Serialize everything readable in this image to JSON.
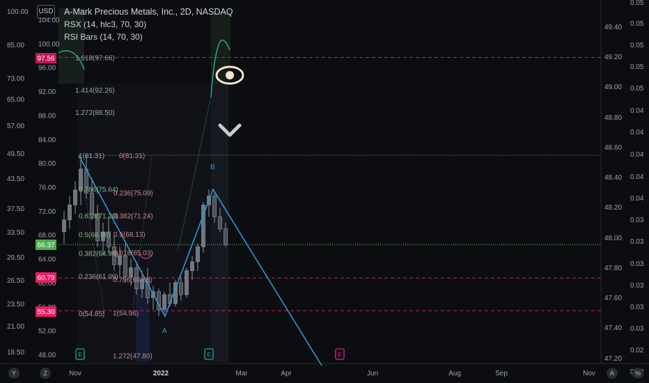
{
  "header": {
    "title": "A-Mark Precious Metals, Inc., 2D, NASDAQ",
    "indicator_1": "RSX (14, hlc3, 70, 30)",
    "indicator_2": "RSI Bars (14, 70, 30)",
    "currency": "USD"
  },
  "bottom_buttons": {
    "y": "Y",
    "z": "Z",
    "a": "A",
    "log": "%"
  },
  "colors": {
    "background": "#0c0d10",
    "zigzag": "#2b9bd4",
    "fib_dashed": "#d81b60",
    "current_price": "#7fd07f",
    "rsx_line": "#26a69a",
    "earnings": "#26a69a",
    "event": "#e91e8c"
  },
  "icons": [
    "eye-icon",
    "chevron-down-icon",
    "earnings-icon",
    "event-icon"
  ],
  "chart_data": {
    "type": "candlestick",
    "x_axis": {
      "ticks": [
        "Nov",
        "2022",
        "Mar",
        "Apr",
        "Jun",
        "Aug",
        "Sep",
        "Nov"
      ]
    },
    "left_price_axis": {
      "ticks": [
        "100.00",
        "85.00",
        "73.00",
        "65.00",
        "57.00",
        "49.50",
        "43.50",
        "37.50",
        "33.50",
        "29.50",
        "26.50",
        "23.50",
        "21.00",
        "18.50"
      ],
      "badges": [
        {
          "label": "97.56",
          "color": "#c2185b"
        },
        {
          "label": "66.37",
          "color": "#4caf50"
        },
        {
          "label": "60.79",
          "color": "#e91e63"
        },
        {
          "label": "55.30",
          "color": "#e91e63"
        }
      ]
    },
    "inner_price_axis": {
      "ticks": [
        "104.00",
        "100.00",
        "96.00",
        "92.00",
        "88.00",
        "84.00",
        "80.00",
        "76.00",
        "72.00",
        "68.00",
        "64.00",
        "60.00",
        "56.00",
        "52.00",
        "48.00"
      ]
    },
    "right_axis_1": {
      "ticks": [
        "49.40",
        "49.20",
        "49.00",
        "48.80",
        "48.60",
        "48.40",
        "48.20",
        "48.00",
        "47.80",
        "47.60",
        "47.40",
        "47.20"
      ]
    },
    "right_axis_2": {
      "ticks": [
        "0.05",
        "0.05",
        "0.05",
        "0.05",
        "0.05",
        "0.04",
        "0.04",
        "0.04",
        "0.04",
        "0.04",
        "0.03",
        "0.03",
        "0.03",
        "0.03",
        "0.03",
        "0.03",
        "0.02",
        "0.02"
      ]
    },
    "fib_labels_left": [
      {
        "text": "1.618(97.66)",
        "price": 97.66
      },
      {
        "text": "1.414(92.26)",
        "price": 92.26
      },
      {
        "text": "1.272(88.50)",
        "price": 88.5
      },
      {
        "text": "1(81.31)",
        "price": 81.31
      },
      {
        "text": "0.786(75.64)",
        "price": 75.64
      },
      {
        "text": "0.618(71.20)",
        "price": 71.2
      },
      {
        "text": "0.5(68.08)",
        "price": 68.08
      },
      {
        "text": "0.382(64.96)",
        "price": 64.96
      },
      {
        "text": "0.236(61.09)",
        "price": 61.09
      },
      {
        "text": "0(54.85)",
        "price": 54.85
      }
    ],
    "fib_labels_right": [
      {
        "text": "0(81.31)",
        "price": 81.31
      },
      {
        "text": "0.236(75.09)",
        "price": 75.09
      },
      {
        "text": "0.382(71.24)",
        "price": 71.24
      },
      {
        "text": "0.5(68.13)",
        "price": 68.13
      },
      {
        "text": "0.618(65.03)",
        "price": 65.03
      },
      {
        "text": "0.786(60.60)",
        "price": 60.6
      },
      {
        "text": "1(54.96)",
        "price": 54.96
      },
      {
        "text": "1.272(47.80)",
        "price": 47.8
      }
    ],
    "pattern_points": [
      {
        "label": "",
        "price": 81.31
      },
      {
        "label": "A",
        "price": 54.4
      },
      {
        "label": "B",
        "price": 75.6
      }
    ],
    "candles": [
      {
        "o": 68.5,
        "h": 72.0,
        "l": 66.5,
        "c": 70.5
      },
      {
        "o": 70.5,
        "h": 74.5,
        "l": 69.0,
        "c": 73.0
      },
      {
        "o": 73.0,
        "h": 77.0,
        "l": 71.5,
        "c": 75.5
      },
      {
        "o": 75.5,
        "h": 80.5,
        "l": 73.0,
        "c": 79.0
      },
      {
        "o": 79.0,
        "h": 81.3,
        "l": 74.0,
        "c": 75.0
      },
      {
        "o": 75.0,
        "h": 77.5,
        "l": 70.5,
        "c": 71.5
      },
      {
        "o": 71.5,
        "h": 73.0,
        "l": 66.0,
        "c": 67.0
      },
      {
        "o": 67.0,
        "h": 70.0,
        "l": 64.5,
        "c": 68.5
      },
      {
        "o": 68.5,
        "h": 71.0,
        "l": 65.0,
        "c": 66.0
      },
      {
        "o": 66.0,
        "h": 68.0,
        "l": 62.0,
        "c": 63.0
      },
      {
        "o": 63.0,
        "h": 66.0,
        "l": 61.0,
        "c": 64.5
      },
      {
        "o": 64.5,
        "h": 66.5,
        "l": 60.0,
        "c": 61.0
      },
      {
        "o": 61.0,
        "h": 64.0,
        "l": 59.5,
        "c": 62.5
      },
      {
        "o": 62.5,
        "h": 63.5,
        "l": 58.0,
        "c": 59.0
      },
      {
        "o": 59.0,
        "h": 62.0,
        "l": 57.5,
        "c": 60.5
      },
      {
        "o": 60.5,
        "h": 62.5,
        "l": 56.5,
        "c": 57.5
      },
      {
        "o": 57.5,
        "h": 59.5,
        "l": 55.5,
        "c": 58.5
      },
      {
        "o": 58.5,
        "h": 59.0,
        "l": 54.4,
        "c": 55.5
      },
      {
        "o": 55.5,
        "h": 58.5,
        "l": 55.0,
        "c": 58.0
      },
      {
        "o": 58.0,
        "h": 60.0,
        "l": 56.0,
        "c": 56.5
      },
      {
        "o": 56.5,
        "h": 60.5,
        "l": 56.0,
        "c": 60.0
      },
      {
        "o": 60.0,
        "h": 61.0,
        "l": 57.0,
        "c": 58.0
      },
      {
        "o": 58.0,
        "h": 62.5,
        "l": 57.5,
        "c": 62.0
      },
      {
        "o": 62.0,
        "h": 64.5,
        "l": 60.5,
        "c": 63.5
      },
      {
        "o": 63.5,
        "h": 66.5,
        "l": 62.0,
        "c": 66.0
      },
      {
        "o": 66.0,
        "h": 73.5,
        "l": 65.0,
        "c": 73.0
      },
      {
        "o": 73.0,
        "h": 75.6,
        "l": 71.0,
        "c": 74.5
      },
      {
        "o": 74.5,
        "h": 75.0,
        "l": 70.0,
        "c": 71.0
      },
      {
        "o": 71.0,
        "h": 72.5,
        "l": 68.5,
        "c": 69.0
      },
      {
        "o": 69.0,
        "h": 70.0,
        "l": 66.0,
        "c": 66.4
      }
    ]
  }
}
